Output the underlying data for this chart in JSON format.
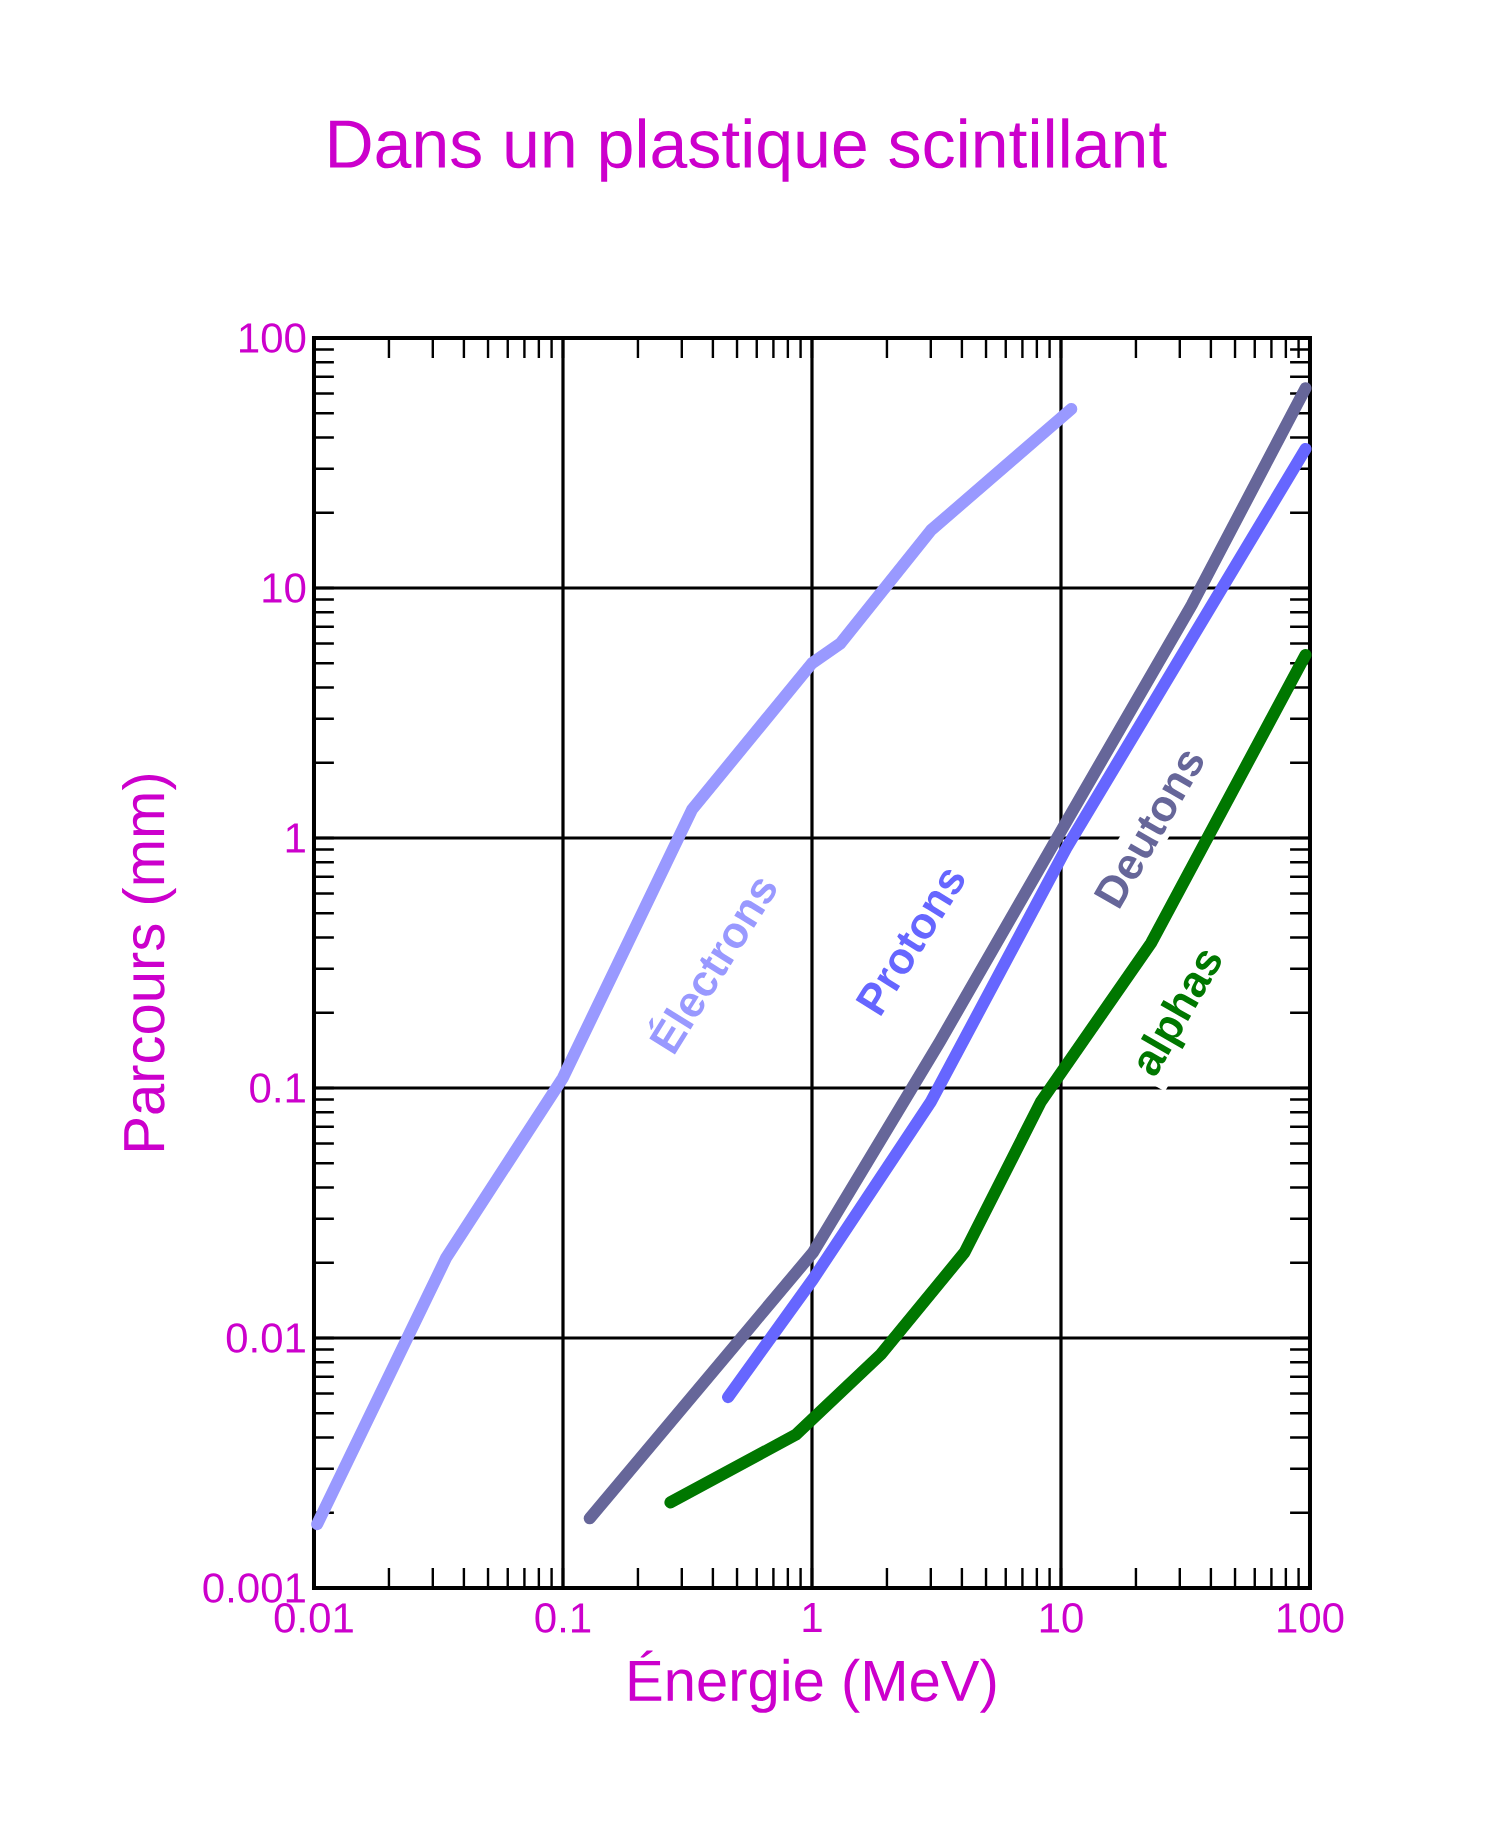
{
  "chart_data": {
    "type": "line",
    "title": "Dans un plastique scintillant",
    "xlabel": "Énergie (MeV)",
    "ylabel": "Parcours (mm)",
    "log": "xy",
    "grid": true,
    "legend": false,
    "marker": "none",
    "line_style": "solid",
    "xlim": [
      0.01,
      100
    ],
    "xticks": [
      0.01,
      0.1,
      1,
      10,
      100
    ],
    "ylim": [
      0.001,
      100
    ],
    "yticks": [
      0.001,
      0.01,
      0.1,
      1,
      10,
      100
    ],
    "series": [
      {
        "name": "Électrons",
        "color": "#9999ff",
        "x": [
          0.0103,
          0.034,
          0.1,
          0.33,
          1,
          1.3,
          3,
          11
        ],
        "values": [
          0.0018,
          0.021,
          0.11,
          1.3,
          5,
          6,
          17,
          52
        ]
      },
      {
        "name": "Protons",
        "color": "#6666ff",
        "x": [
          0.46,
          1.01,
          3.0,
          10.5,
          33.6,
          96
        ],
        "values": [
          0.0058,
          0.0172,
          0.088,
          0.91,
          6.3,
          36
        ]
      },
      {
        "name": "Deutons",
        "color": "#666699",
        "x": [
          0.128,
          0.58,
          1.01,
          3.26,
          10.5,
          33.6,
          96
        ],
        "values": [
          0.0019,
          0.0114,
          0.022,
          0.153,
          1.16,
          8.6,
          63
        ]
      },
      {
        "name": "alphas",
        "color": "#007700",
        "x": [
          0.27,
          0.86,
          1.89,
          4.1,
          8.3,
          23,
          96
        ],
        "values": [
          0.0022,
          0.0041,
          0.0086,
          0.022,
          0.088,
          0.38,
          5.4
        ]
      }
    ]
  }
}
